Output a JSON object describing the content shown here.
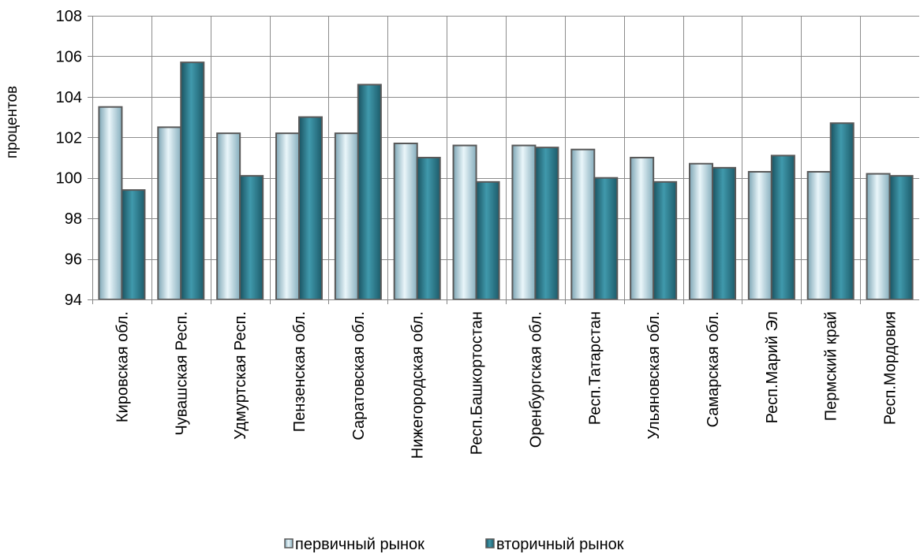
{
  "chart_data": {
    "type": "bar",
    "ylabel": "процентов",
    "ylim": [
      94,
      108
    ],
    "yticks": [
      94,
      96,
      98,
      100,
      102,
      104,
      106,
      108
    ],
    "grid": true,
    "legend": "bottom",
    "categories": [
      "Кировская обл.",
      "Чувашская Респ.",
      "Удмуртская Респ.",
      "Пензенская обл.",
      "Саратовская обл.",
      "Нижегородская обл.",
      "Респ.Башкортостан",
      "Оренбургская обл.",
      "Респ.Татарстан",
      "Ульяновская обл.",
      "Самарская обл.",
      "Респ.Марий Эл",
      "Пермский край",
      "Респ.Мордовия"
    ],
    "series": [
      {
        "name": "первичный рынок",
        "color": "#bfe0ea",
        "values": [
          103.5,
          102.5,
          102.2,
          102.2,
          102.2,
          101.7,
          101.6,
          101.6,
          101.4,
          101.0,
          100.7,
          100.3,
          100.3,
          100.2
        ]
      },
      {
        "name": "вторичный рынок",
        "color": "#2e7f92",
        "values": [
          99.4,
          105.7,
          100.1,
          103.0,
          104.6,
          101.0,
          99.8,
          101.5,
          100.0,
          99.8,
          100.5,
          101.1,
          102.7,
          100.1
        ]
      }
    ]
  }
}
